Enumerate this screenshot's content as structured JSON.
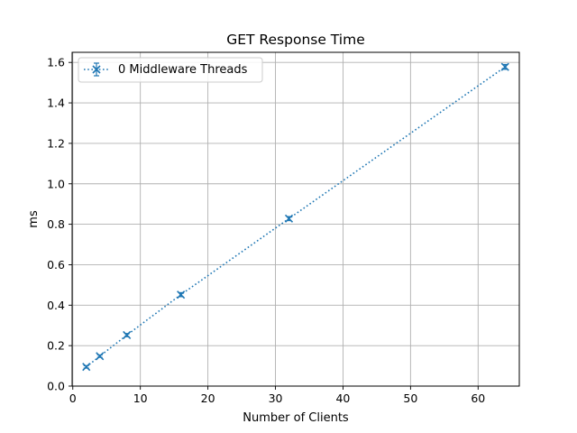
{
  "chart_data": {
    "type": "line",
    "title": "GET Response Time",
    "xlabel": "Number of Clients",
    "ylabel": "ms",
    "xlim": [
      -0.1,
      66.1
    ],
    "ylim": [
      0.0,
      1.65
    ],
    "xticks": [
      0,
      10,
      20,
      30,
      40,
      50,
      60
    ],
    "yticks": [
      0.0,
      0.2,
      0.4,
      0.6,
      0.8,
      1.0,
      1.2,
      1.4,
      1.6
    ],
    "grid": true,
    "legend_position": "top-left",
    "series": [
      {
        "name": "0 Middleware Threads",
        "color": "#1f77b4",
        "line_style": "dotted",
        "marker": "x",
        "x": [
          2,
          4,
          8,
          16,
          32,
          64
        ],
        "y": [
          0.095,
          0.148,
          0.252,
          0.452,
          0.828,
          1.578
        ],
        "error": [
          0.006,
          0.006,
          0.008,
          0.01,
          0.01,
          0.012
        ]
      }
    ]
  }
}
